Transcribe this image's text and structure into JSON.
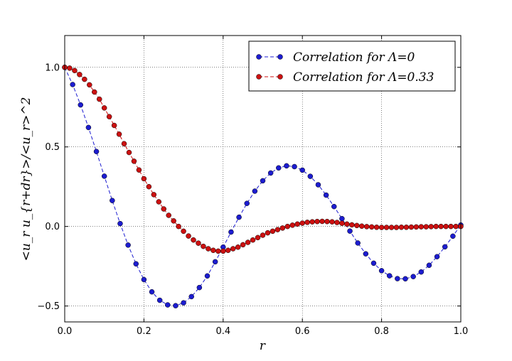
{
  "chart_data": {
    "type": "line",
    "xlabel": "r",
    "ylabel": "<u_r u_{r+dr}>/<u_r>^2",
    "xlim": [
      0,
      1
    ],
    "ylim": [
      -0.6,
      1.2
    ],
    "xticks": [
      {
        "value": 0,
        "label": "0.0"
      },
      0.2,
      0.4,
      0.6,
      0.8,
      {
        "value": 1,
        "label": "1.0"
      }
    ],
    "yticks": [
      {
        "value": -0.5,
        "label": "−0.5"
      },
      {
        "value": 0,
        "label": "0.0"
      },
      0.5,
      {
        "value": 1,
        "label": "1.0"
      }
    ],
    "grid": true,
    "legend": "upper right",
    "series": [
      {
        "name": "Correlation for Λ=0",
        "color": "#1c1cd0",
        "x": [
          0,
          0.02,
          0.04,
          0.06,
          0.08,
          0.1,
          0.12,
          0.14,
          0.16,
          0.18,
          0.2,
          0.22,
          0.24,
          0.26,
          0.28,
          0.3,
          0.32,
          0.34,
          0.36,
          0.38,
          0.4,
          0.42,
          0.44,
          0.46,
          0.48,
          0.5,
          0.52,
          0.54,
          0.56,
          0.58,
          0.6,
          0.62,
          0.64,
          0.66,
          0.68,
          0.7,
          0.72,
          0.74,
          0.76,
          0.78,
          0.8,
          0.82,
          0.84,
          0.86,
          0.88,
          0.9,
          0.92,
          0.94,
          0.96,
          0.98,
          1.0
        ],
        "values": [
          1.0,
          0.892,
          0.764,
          0.622,
          0.471,
          0.316,
          0.163,
          0.018,
          -0.117,
          -0.235,
          -0.334,
          -0.411,
          -0.464,
          -0.493,
          -0.498,
          -0.48,
          -0.441,
          -0.384,
          -0.311,
          -0.222,
          -0.13,
          -0.035,
          0.058,
          0.145,
          0.222,
          0.287,
          0.336,
          0.368,
          0.381,
          0.376,
          0.354,
          0.315,
          0.262,
          0.197,
          0.125,
          0.049,
          -0.029,
          -0.104,
          -0.172,
          -0.231,
          -0.278,
          -0.31,
          -0.328,
          -0.329,
          -0.315,
          -0.286,
          -0.244,
          -0.19,
          -0.128,
          -0.061,
          0.009
        ]
      },
      {
        "name": "Correlation for Λ=0.33",
        "color": "#cc1010",
        "x": [
          0,
          0.0125,
          0.025,
          0.0375,
          0.05,
          0.0625,
          0.075,
          0.0875,
          0.1,
          0.1125,
          0.125,
          0.1375,
          0.15,
          0.1625,
          0.175,
          0.1875,
          0.2,
          0.2125,
          0.225,
          0.2375,
          0.25,
          0.2625,
          0.275,
          0.2875,
          0.3,
          0.3125,
          0.325,
          0.3375,
          0.35,
          0.3625,
          0.375,
          0.3875,
          0.4,
          0.4125,
          0.425,
          0.4375,
          0.45,
          0.4625,
          0.475,
          0.4875,
          0.5,
          0.5125,
          0.525,
          0.5375,
          0.55,
          0.5625,
          0.575,
          0.5875,
          0.6,
          0.6125,
          0.625,
          0.6375,
          0.65,
          0.6625,
          0.675,
          0.6875,
          0.7,
          0.7125,
          0.725,
          0.7375,
          0.75,
          0.7625,
          0.775,
          0.7875,
          0.8,
          0.8125,
          0.825,
          0.8375,
          0.85,
          0.8625,
          0.875,
          0.8875,
          0.9,
          0.9125,
          0.925,
          0.9375,
          0.95,
          0.9625,
          0.975,
          0.9875,
          1.0
        ],
        "values": [
          1.0,
          0.995,
          0.98,
          0.955,
          0.925,
          0.89,
          0.845,
          0.8,
          0.745,
          0.69,
          0.635,
          0.58,
          0.52,
          0.465,
          0.41,
          0.355,
          0.3,
          0.25,
          0.2,
          0.155,
          0.11,
          0.07,
          0.035,
          0.0,
          -0.03,
          -0.06,
          -0.085,
          -0.105,
          -0.125,
          -0.14,
          -0.15,
          -0.155,
          -0.155,
          -0.15,
          -0.14,
          -0.13,
          -0.115,
          -0.1,
          -0.085,
          -0.07,
          -0.055,
          -0.04,
          -0.03,
          -0.02,
          -0.01,
          0.0,
          0.008,
          0.015,
          0.021,
          0.026,
          0.029,
          0.031,
          0.032,
          0.031,
          0.029,
          0.025,
          0.02,
          0.015,
          0.01,
          0.006,
          0.002,
          -0.001,
          -0.003,
          -0.005,
          -0.006,
          -0.006,
          -0.006,
          -0.006,
          -0.005,
          -0.005,
          -0.004,
          -0.003,
          -0.002,
          -0.002,
          -0.001,
          0,
          0,
          0,
          0,
          0,
          0
        ]
      }
    ]
  }
}
